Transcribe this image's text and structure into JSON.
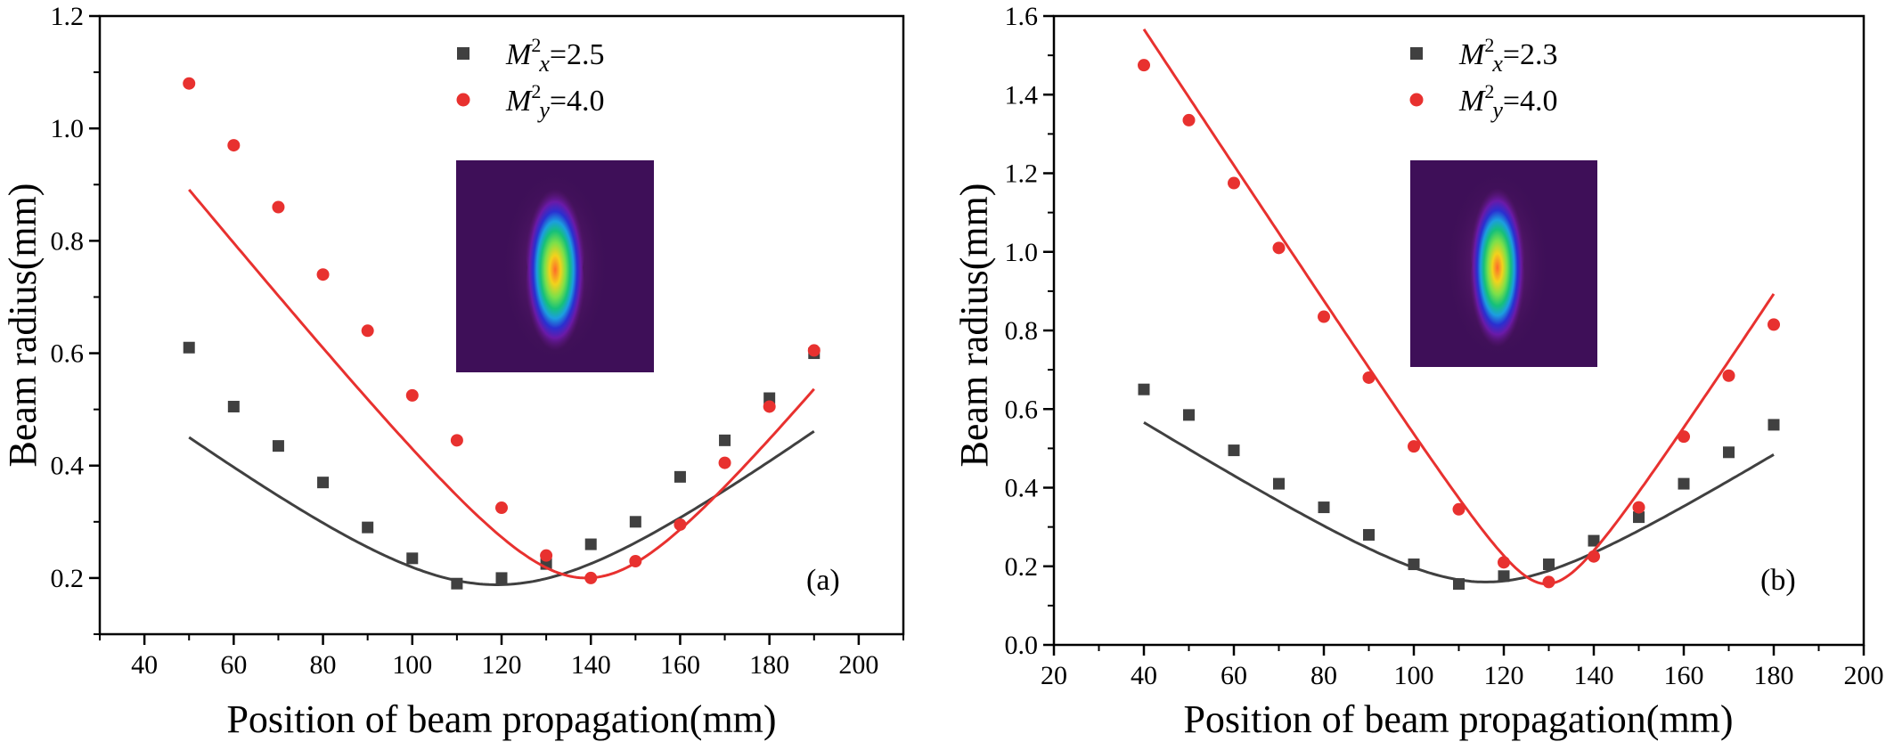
{
  "chart_data": [
    {
      "type": "scatter",
      "panel_label": "(a)",
      "xlabel": "Position of beam propagation(mm)",
      "ylabel": "Beam radius(mm)",
      "xlim": [
        30,
        210
      ],
      "ylim": [
        0.1,
        1.2
      ],
      "xticks": [
        40,
        60,
        80,
        100,
        120,
        140,
        160,
        180,
        200
      ],
      "yticks": [
        0.2,
        0.4,
        0.6,
        0.8,
        1.0,
        1.2
      ],
      "xtick_labels": [
        "40",
        "60",
        "80",
        "100",
        "120",
        "140",
        "160",
        "180",
        "200"
      ],
      "ytick_labels": [
        "0.2",
        "0.4",
        "0.6",
        "0.8",
        "1.0",
        "1.2"
      ],
      "grid": false,
      "legend_placement": "top-center",
      "inset": "beam-profile-image",
      "series": [
        {
          "legend": {
            "sym": "M",
            "sup": "2",
            "sub": "x",
            "value": "=2.5"
          },
          "color": "#404040",
          "marker": "square",
          "fit_curve": {
            "z0": 119,
            "w0": 0.188,
            "zr": 31.7
          },
          "x": [
            50,
            60,
            70,
            80,
            90,
            100,
            110,
            120,
            130,
            140,
            150,
            160,
            170,
            180,
            190
          ],
          "y": [
            0.61,
            0.505,
            0.435,
            0.37,
            0.29,
            0.235,
            0.19,
            0.2,
            0.225,
            0.26,
            0.3,
            0.38,
            0.445,
            0.52,
            0.6
          ]
        },
        {
          "legend": {
            "sym": "M",
            "sup": "2",
            "sub": "y",
            "value": "=4.0"
          },
          "color": "#e8312f",
          "marker": "circle",
          "fit_curve": {
            "z0": 139,
            "w0": 0.2,
            "zr": 20.5
          },
          "x": [
            50,
            60,
            70,
            80,
            90,
            100,
            110,
            120,
            130,
            140,
            150,
            160,
            170,
            180,
            190
          ],
          "y": [
            1.08,
            0.97,
            0.86,
            0.74,
            0.64,
            0.525,
            0.445,
            0.325,
            0.24,
            0.2,
            0.23,
            0.295,
            0.405,
            0.505,
            0.605
          ]
        }
      ]
    },
    {
      "type": "scatter",
      "panel_label": "(b)",
      "xlabel": "Position of beam propagation(mm)",
      "ylabel": "Beam radius(mm)",
      "xlim": [
        20,
        200
      ],
      "ylim": [
        0.0,
        1.6
      ],
      "xticks": [
        20,
        40,
        60,
        80,
        100,
        120,
        140,
        160,
        180,
        200
      ],
      "yticks": [
        0.0,
        0.2,
        0.4,
        0.6,
        0.8,
        1.0,
        1.2,
        1.4,
        1.6
      ],
      "xtick_labels": [
        "20",
        "40",
        "60",
        "80",
        "100",
        "120",
        "140",
        "160",
        "180",
        "200"
      ],
      "ytick_labels": [
        "0.0",
        "0.2",
        "0.4",
        "0.6",
        "0.8",
        "1.0",
        "1.2",
        "1.4",
        "1.6"
      ],
      "grid": false,
      "legend_placement": "top-center",
      "inset": "beam-profile-image",
      "series": [
        {
          "legend": {
            "sym": "M",
            "sup": "2",
            "sub": "x",
            "value": "=2.3"
          },
          "color": "#404040",
          "marker": "square",
          "fit_curve": {
            "z0": 116,
            "w0": 0.16,
            "zr": 22.4
          },
          "x": [
            40,
            50,
            60,
            70,
            80,
            90,
            100,
            110,
            120,
            130,
            140,
            150,
            160,
            170,
            180
          ],
          "y": [
            0.65,
            0.585,
            0.495,
            0.41,
            0.35,
            0.28,
            0.205,
            0.155,
            0.175,
            0.205,
            0.265,
            0.325,
            0.41,
            0.49,
            0.56
          ]
        },
        {
          "legend": {
            "sym": "M",
            "sup": "2",
            "sub": "y",
            "value": "=4.0"
          },
          "color": "#e8312f",
          "marker": "circle",
          "fit_curve": {
            "z0": 129.5,
            "w0": 0.155,
            "zr": 8.9
          },
          "x": [
            40,
            50,
            60,
            70,
            80,
            90,
            100,
            110,
            120,
            130,
            140,
            150,
            160,
            170,
            180
          ],
          "y": [
            1.475,
            1.335,
            1.175,
            1.01,
            0.835,
            0.68,
            0.505,
            0.345,
            0.21,
            0.16,
            0.225,
            0.35,
            0.53,
            0.685,
            0.815
          ]
        }
      ]
    }
  ]
}
